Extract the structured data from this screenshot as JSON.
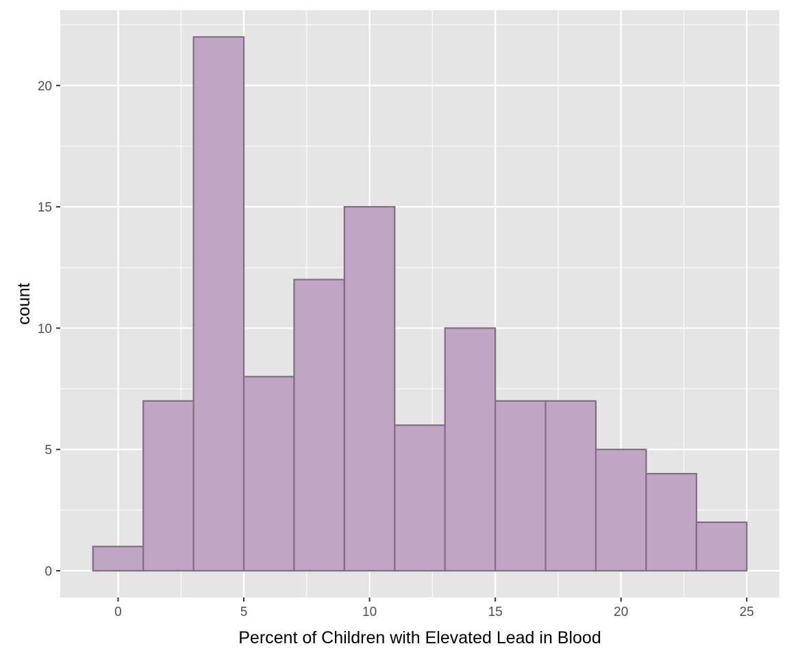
{
  "chart_data": {
    "type": "bar",
    "subtype": "histogram",
    "title": "",
    "xlabel": "Percent of Children with Elevated Lead in Blood",
    "ylabel": "count",
    "bin_width": 2,
    "bins": [
      {
        "start": -1,
        "end": 1,
        "count": 1
      },
      {
        "start": 1,
        "end": 3,
        "count": 7
      },
      {
        "start": 3,
        "end": 5,
        "count": 22
      },
      {
        "start": 5,
        "end": 7,
        "count": 8
      },
      {
        "start": 7,
        "end": 9,
        "count": 12
      },
      {
        "start": 9,
        "end": 11,
        "count": 15
      },
      {
        "start": 11,
        "end": 13,
        "count": 6
      },
      {
        "start": 13,
        "end": 15,
        "count": 10
      },
      {
        "start": 15,
        "end": 17,
        "count": 7
      },
      {
        "start": 17,
        "end": 19,
        "count": 7
      },
      {
        "start": 19,
        "end": 21,
        "count": 5
      },
      {
        "start": 21,
        "end": 23,
        "count": 4
      },
      {
        "start": 23,
        "end": 25,
        "count": 2
      }
    ],
    "xlim": [
      -2.3,
      26.3
    ],
    "ylim": [
      -1.1,
      23.1
    ],
    "x_ticks": [
      0,
      5,
      10,
      15,
      20,
      25
    ],
    "y_ticks": [
      0,
      5,
      10,
      15,
      20
    ],
    "grid": true,
    "colors": {
      "panel_background": "#e5e5e5",
      "grid_major": "#ffffff",
      "bar_fill": "#c1a5c4",
      "bar_outline": "#7e6e80",
      "tick_text": "#4d4d4d",
      "title_text": "#000000"
    }
  }
}
